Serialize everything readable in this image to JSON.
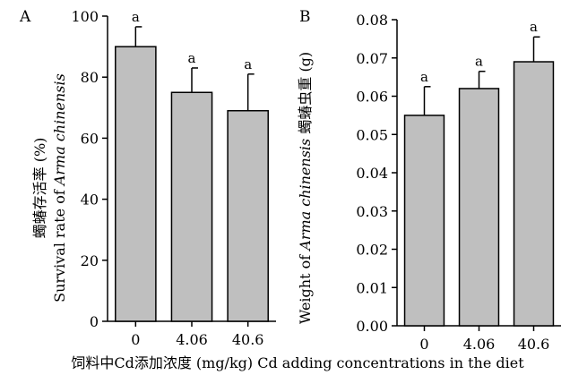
{
  "figure": {
    "xlabel": "饲料中Cd添加浓度 (mg/kg) Cd adding concentrations in the diet"
  },
  "chart_data": [
    {
      "type": "bar",
      "panel": "A",
      "categories": [
        "0",
        "4.06",
        "40.6"
      ],
      "values": [
        90,
        75,
        69
      ],
      "errors": [
        6.5,
        8,
        12
      ],
      "sig_letters": [
        "a",
        "a",
        "a"
      ],
      "ylabel_prefix": "蠋蝽存活率 (%)",
      "ylabel_plain": "Survival rate of ",
      "ylabel_italic": "Arma chinensis",
      "ylim": [
        0,
        100
      ],
      "yticks": [
        "0",
        "20",
        "40",
        "60",
        "80",
        "100"
      ],
      "bar_color": "#bfbfbf"
    },
    {
      "type": "bar",
      "panel": "B",
      "categories": [
        "0",
        "4.06",
        "40.6"
      ],
      "values": [
        0.055,
        0.062,
        0.069
      ],
      "errors": [
        0.0075,
        0.0045,
        0.0065
      ],
      "sig_letters": [
        "a",
        "a",
        "a"
      ],
      "ylabel_plain": "Weight of ",
      "ylabel_italic": "Arma chinensis",
      "ylabel_suffix": " 蠋蝽虫重 (g)",
      "ylim": [
        0,
        0.08
      ],
      "yticks": [
        "0.00",
        "0.01",
        "0.02",
        "0.03",
        "0.04",
        "0.05",
        "0.06",
        "0.07",
        "0.08"
      ],
      "bar_color": "#bfbfbf"
    }
  ]
}
